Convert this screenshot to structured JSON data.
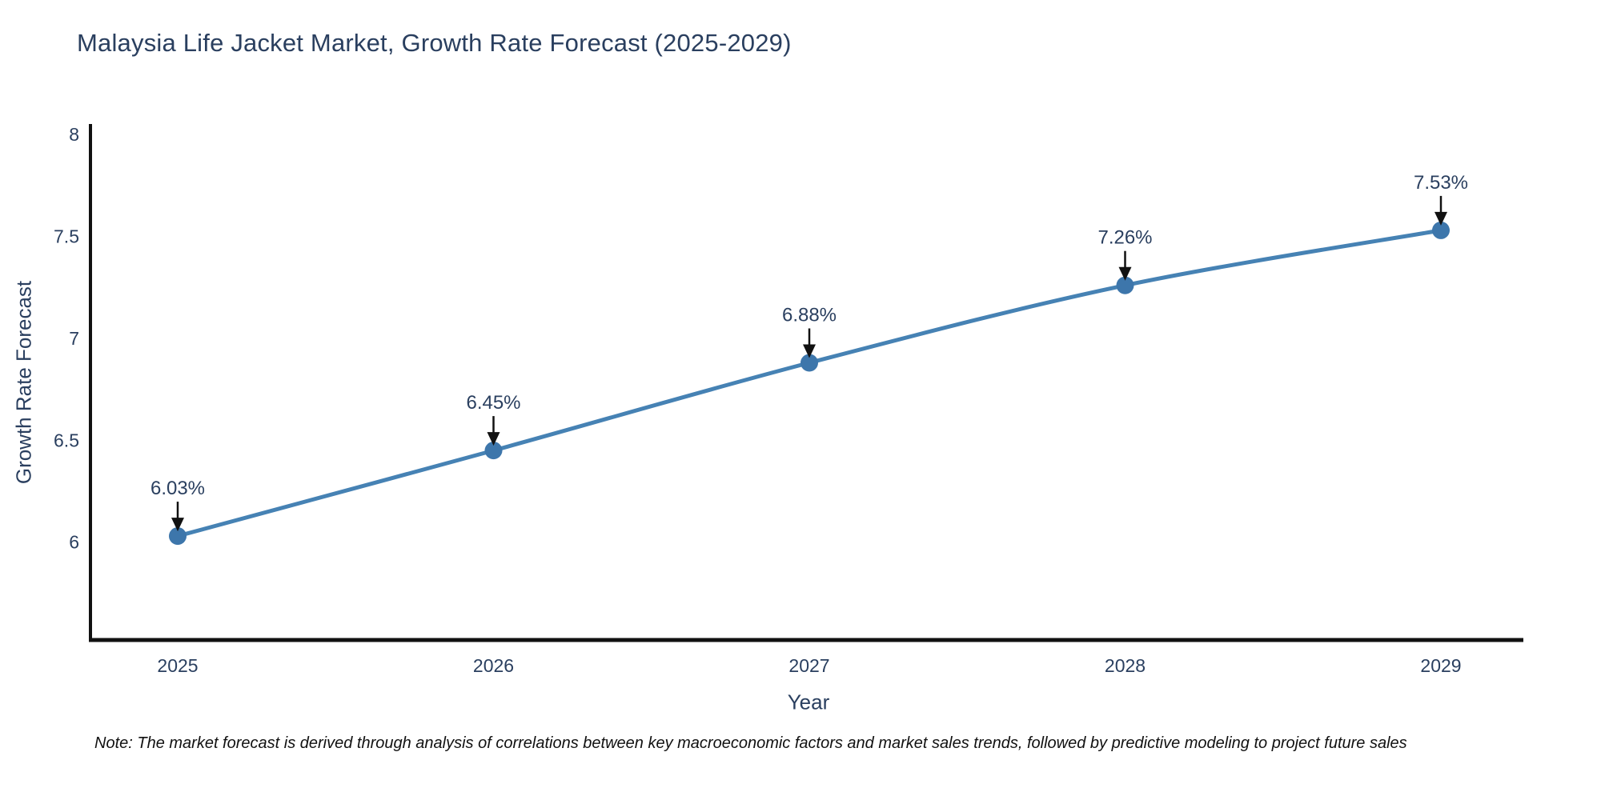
{
  "page": {
    "background": "#ffffff"
  },
  "chart_data": {
    "type": "line",
    "title": "Malaysia Life Jacket Market, Growth Rate Forecast (2025-2029)",
    "xlabel": "Year",
    "ylabel": "Growth Rate Forecast",
    "x": [
      2025,
      2026,
      2027,
      2028,
      2029
    ],
    "series": [
      {
        "name": "Growth Rate Forecast",
        "values": [
          6.03,
          6.45,
          6.88,
          7.26,
          7.53
        ],
        "color": "#4682b4"
      }
    ],
    "point_labels": [
      "6.03%",
      "6.45%",
      "6.88%",
      "7.26%",
      "7.53%"
    ],
    "yticks": [
      6,
      6.5,
      7,
      7.5,
      8
    ],
    "ylim": [
      5.52,
      8.04
    ],
    "grid": false,
    "legend": "none",
    "marker_color": "#3d76ab",
    "text_color": "#2a3f5f",
    "axis_color": "#111111",
    "annotation_arrow_color": "#111111"
  },
  "note": {
    "text": "Note: The market forecast is derived through analysis of correlations between key macroeconomic factors and market sales trends, followed by predictive modeling to project future sales"
  }
}
